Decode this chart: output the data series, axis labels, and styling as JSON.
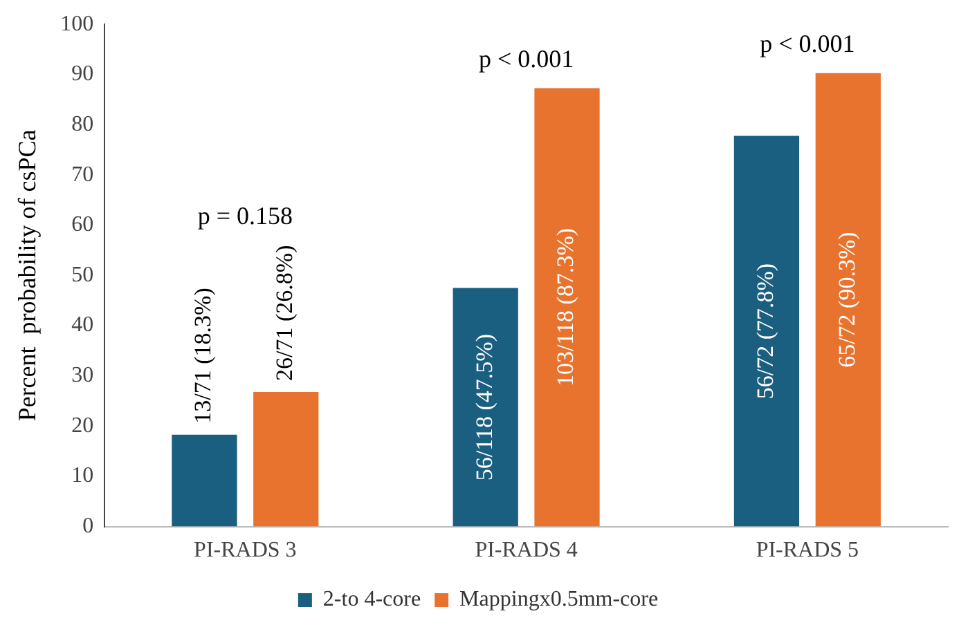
{
  "chart_data": {
    "type": "bar",
    "ylabel": "Percent  probability of csPCa",
    "categories": [
      "PI-RADS 3",
      "PI-RADS 4",
      "PI-RADS 5"
    ],
    "series": [
      {
        "name": "2-to 4-core",
        "color": "#1a5e80",
        "values": [
          18.3,
          47.5,
          77.8
        ],
        "value_labels": [
          "13/71 (18.3%)",
          "56/118 (47.5%)",
          "56/72 (77.8%)"
        ]
      },
      {
        "name": "Mappingx0.5mm-core",
        "color": "#e8732f",
        "values": [
          26.8,
          87.3,
          90.3
        ],
        "value_labels": [
          "26/71 (26.8%)",
          "103/118 (87.3%)",
          "65/72 (90.3%)"
        ]
      }
    ],
    "ylim": [
      0,
      100
    ],
    "yticks": [
      0,
      10,
      20,
      30,
      40,
      50,
      60,
      70,
      80,
      90,
      100
    ],
    "grid": false,
    "legend": "bottom",
    "annotations": [
      "p = 0.158",
      "p < 0.001",
      "p < 0.001"
    ]
  }
}
